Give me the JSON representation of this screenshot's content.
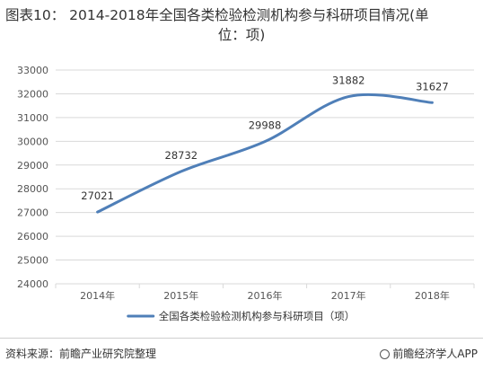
{
  "title": {
    "line1": "图表10：  2014-2018年全国各类检验检测机构参与科研项目情况(单",
    "line2": "位：项)"
  },
  "chart_data": {
    "type": "line",
    "title": "图表10：  2014-2018年全国各类检验检测机构参与科研项目情况(单位：项)",
    "categories": [
      "2014年",
      "2015年",
      "2016年",
      "2017年",
      "2018年"
    ],
    "series": [
      {
        "name": "全国各类检验检测机构参与科研项目（项）",
        "values": [
          27021,
          28732,
          29988,
          31882,
          31627
        ],
        "data_labels": [
          "27021",
          "28732",
          "29988",
          "31882",
          "31627"
        ]
      }
    ],
    "ylim": [
      24000,
      33000
    ],
    "yticks": [
      24000,
      25000,
      26000,
      27000,
      28000,
      29000,
      30000,
      31000,
      32000,
      33000
    ],
    "xlabel": "",
    "ylabel": "",
    "grid": true,
    "legend": "bottom-center",
    "line_color": "#4f7fb8",
    "grid_color": "#d9d9d9",
    "smooth": true
  },
  "footer": {
    "source": "资料来源：前瞻产业研究院整理",
    "brand": "前瞻经济学人APP",
    "brand_icon": "brand-logo-icon"
  }
}
